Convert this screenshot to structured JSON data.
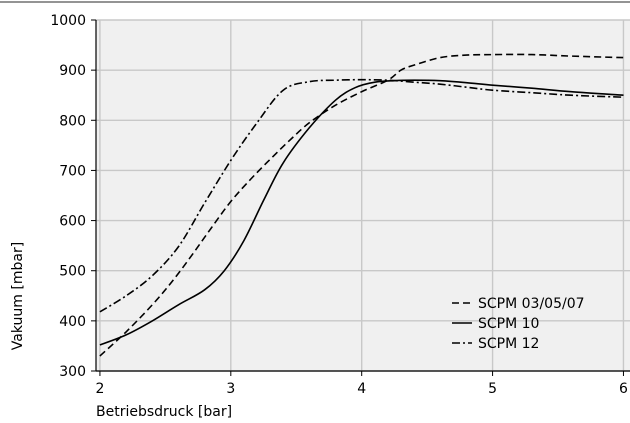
{
  "chart_data": {
    "type": "line",
    "title": "",
    "xlabel": "Betriebsdruck [bar]",
    "ylabel": "Vakuum [mbar]",
    "xlim": [
      1.97,
      6.05
    ],
    "ylim": [
      300,
      1000
    ],
    "xticks": [
      2,
      3,
      4,
      5,
      6
    ],
    "yticks": [
      300,
      400,
      500,
      600,
      700,
      800,
      900,
      1000
    ],
    "grid": true,
    "legend_position": "bottom-right",
    "background_color": "#f0f0f0",
    "series": [
      {
        "name": "SCPM 03/05/07",
        "dash": "dashed",
        "x": [
          2.0,
          2.2,
          2.4,
          2.55,
          2.7,
          2.85,
          3.0,
          3.15,
          3.3,
          3.45,
          3.6,
          3.8,
          4.0,
          4.2,
          4.3,
          4.4,
          4.6,
          4.8,
          5.0,
          5.3,
          5.6,
          6.0
        ],
        "y": [
          330,
          378,
          432,
          478,
          530,
          585,
          638,
          682,
          722,
          760,
          795,
          830,
          857,
          880,
          900,
          910,
          925,
          930,
          931,
          931,
          928,
          925
        ]
      },
      {
        "name": "SCPM 10",
        "dash": "solid",
        "x": [
          2.0,
          2.2,
          2.4,
          2.6,
          2.8,
          2.95,
          3.1,
          3.25,
          3.4,
          3.6,
          3.8,
          3.95,
          4.1,
          4.25,
          4.4,
          4.6,
          4.8,
          5.0,
          5.3,
          5.6,
          6.0
        ],
        "y": [
          352,
          372,
          400,
          432,
          462,
          500,
          560,
          640,
          715,
          785,
          840,
          865,
          876,
          879,
          880,
          879,
          875,
          870,
          864,
          857,
          850
        ]
      },
      {
        "name": "SCPM 12",
        "dash": "dashdot",
        "x": [
          2.0,
          2.2,
          2.4,
          2.6,
          2.8,
          3.0,
          3.2,
          3.4,
          3.6,
          3.8,
          4.0,
          4.2,
          4.4,
          4.6,
          4.8,
          5.0,
          5.3,
          5.6,
          6.0
        ],
        "y": [
          418,
          450,
          490,
          548,
          635,
          720,
          795,
          860,
          877,
          880,
          881,
          880,
          876,
          872,
          866,
          860,
          855,
          850,
          846
        ]
      }
    ]
  }
}
